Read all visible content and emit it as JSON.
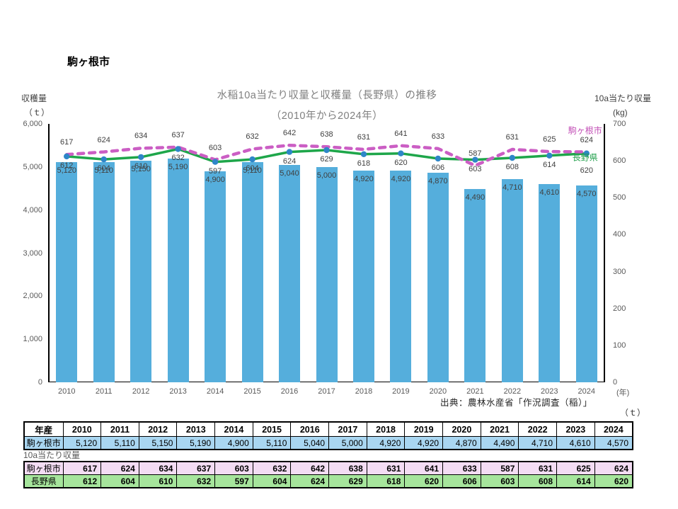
{
  "page": {
    "region_label": "駒ヶ根市"
  },
  "chart_data": {
    "type": "combo-bar-line",
    "title_line1": "水稲10a当たり収量と収穫量（長野県）の推移",
    "title_line2": "（2010年から2024年）",
    "categories": [
      "2010",
      "2011",
      "2012",
      "2013",
      "2014",
      "2015",
      "2016",
      "2017",
      "2018",
      "2019",
      "2020",
      "2021",
      "2022",
      "2023",
      "2024"
    ],
    "x_axis_unit": "(年)",
    "left_axis": {
      "caption": "収穫量",
      "unit": "（ｔ）",
      "min": 0,
      "max": 6000,
      "step": 1000
    },
    "right_axis": {
      "caption": "10a当たり収量",
      "unit": "(kg)",
      "min": 0,
      "max": 700,
      "step": 100
    },
    "series": [
      {
        "name": "駒ヶ根市収穫量",
        "type": "bar",
        "axis": "left",
        "color": "#55AEDC",
        "values": [
          5120,
          5110,
          5150,
          5190,
          4900,
          5110,
          5040,
          5000,
          4920,
          4920,
          4870,
          4490,
          4710,
          4610,
          4570
        ]
      },
      {
        "name": "駒ヶ根市",
        "type": "line-dashed",
        "axis": "right",
        "color": "#CB5EC4",
        "values": [
          617,
          624,
          634,
          637,
          603,
          632,
          642,
          638,
          631,
          641,
          633,
          587,
          631,
          625,
          624
        ]
      },
      {
        "name": "長野県",
        "type": "line-solid",
        "axis": "right",
        "color": "#1EA64A",
        "marker_color": "#2E86C8",
        "values": [
          612,
          604,
          610,
          632,
          597,
          604,
          624,
          629,
          618,
          620,
          606,
          603,
          608,
          614,
          620
        ]
      }
    ],
    "legend_position": "end-of-line-labels",
    "grid": false,
    "source": "出典：農林水産省「作況調査（稲）」"
  },
  "tables": {
    "unit_label": "（ｔ）",
    "harvest": {
      "header": [
        "年産",
        "2010",
        "2011",
        "2012",
        "2013",
        "2014",
        "2015",
        "2016",
        "2017",
        "2018",
        "2019",
        "2020",
        "2021",
        "2022",
        "2023",
        "2024"
      ],
      "rows": [
        {
          "label": "駒ヶ根市",
          "fill": "#A9D6F1",
          "values": [
            5120,
            5110,
            5150,
            5190,
            4900,
            5110,
            5040,
            5000,
            4920,
            4920,
            4870,
            4490,
            4710,
            4610,
            4570
          ]
        }
      ]
    },
    "yield_label": "10a当たり収量",
    "yield": {
      "rows": [
        {
          "label": "駒ヶ根市",
          "fill": "#F3DCF3",
          "values": [
            617,
            624,
            634,
            637,
            603,
            632,
            642,
            638,
            631,
            641,
            633,
            587,
            631,
            625,
            624
          ]
        },
        {
          "label": "長野県",
          "fill": "#A6E59C",
          "values": [
            612,
            604,
            610,
            632,
            597,
            604,
            624,
            629,
            618,
            620,
            606,
            603,
            608,
            614,
            620
          ]
        }
      ]
    }
  }
}
